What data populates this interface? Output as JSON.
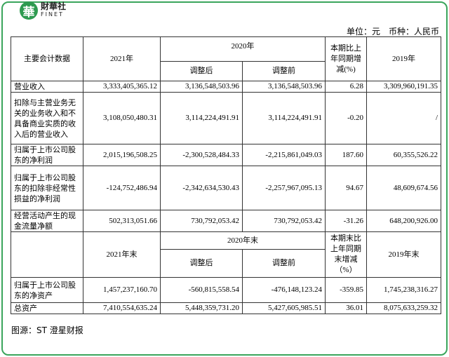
{
  "logo": {
    "mark": "華",
    "name": "財華社",
    "sub": "FINET"
  },
  "unit_note": "单位：元　币种：人民币",
  "table": {
    "header1": [
      "主要会计数据",
      "2021年",
      "2020年",
      "本期比上年同期增减(%)",
      "2019年"
    ],
    "subheader1": [
      "调整后",
      "调整前"
    ],
    "rows": [
      [
        "营业收入",
        "3,333,405,365.12",
        "3,136,548,503.96",
        "3,136,548,503.96",
        "6.28",
        "3,309,960,191.35"
      ],
      [
        "扣除与主营业务无关的业务收入和不具备商业实质的收入后的营业收入",
        "3,108,050,480.31",
        "3,114,224,491.91",
        "3,114,224,491.91",
        "-0.20",
        "/"
      ],
      [
        "归属于上市公司股东的净利润",
        "2,015,196,508.25",
        "-2,300,528,484.33",
        "-2,215,861,049.03",
        "187.60",
        "60,355,526.22"
      ],
      [
        "归属于上市公司股东的扣除非经常性损益的净利润",
        "-124,752,486.94",
        "-2,342,634,530.43",
        "-2,257,967,095.13",
        "94.67",
        "48,609,674.56"
      ],
      [
        "经营活动产生的现金流量净额",
        "502,313,051.66",
        "730,792,053.42",
        "730,792,053.42",
        "-31.26",
        "648,200,926.00"
      ]
    ],
    "header2": [
      "2021年末",
      "2020年末",
      "本期末比上年同期末增减（%）",
      "2019年末"
    ],
    "subheader2": [
      "调整后",
      "调整前"
    ],
    "rows2": [
      [
        "归属于上市公司股东的净资产",
        "1,457,237,160.70",
        "-560,815,558.54",
        "-476,148,123.24",
        "-359.85",
        "1,745,238,316.27"
      ],
      [
        "总资产",
        "7,410,554,635.24",
        "5,448,359,731.20",
        "5,427,605,985.51",
        "36.01",
        "8,075,633,259.32"
      ]
    ]
  },
  "caption": "图源：ST 澄星财报"
}
